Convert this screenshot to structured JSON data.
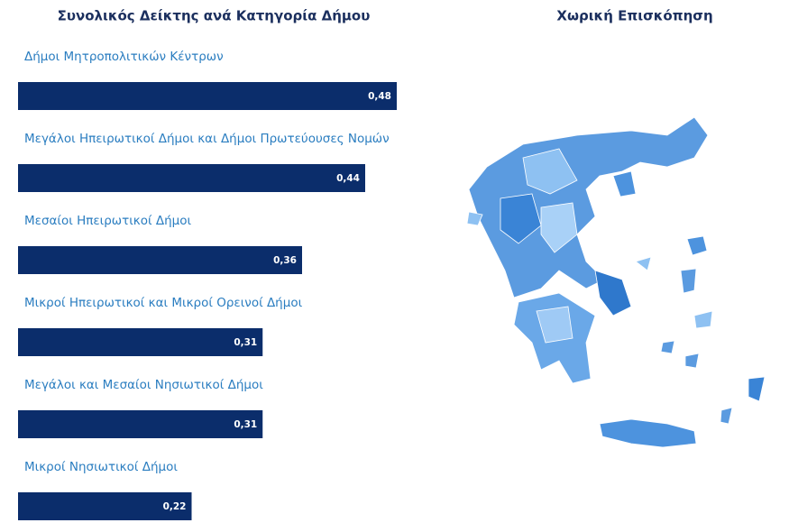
{
  "chart_data": {
    "type": "bar",
    "orientation": "horizontal",
    "title": "Συνολικός Δείκτης ανά Κατηγορία Δήμου",
    "categories": [
      "Δήμοι Μητροπολιτικών Κέντρων",
      "Μεγάλοι Ηπειρωτικοί Δήμοι και Δήμοι Πρωτεύουσες Νομών",
      "Μεσαίοι Ηπειρωτικοί Δήμοι",
      "Μικροί Ηπειρωτικοί και Μικροί Ορεινοί Δήμοι",
      "Μεγάλοι και Μεσαίοι Νησιωτικοί Δήμοι",
      "Μικροί Νησιωτικοί Δήμοι"
    ],
    "values": [
      0.48,
      0.44,
      0.36,
      0.31,
      0.31,
      0.22
    ],
    "value_labels": [
      "0,48",
      "0,44",
      "0,36",
      "0,31",
      "0,31",
      "0,22"
    ],
    "color": "#0b2d6b"
  },
  "map_panel": {
    "title": "Χωρική Επισκόπηση"
  }
}
